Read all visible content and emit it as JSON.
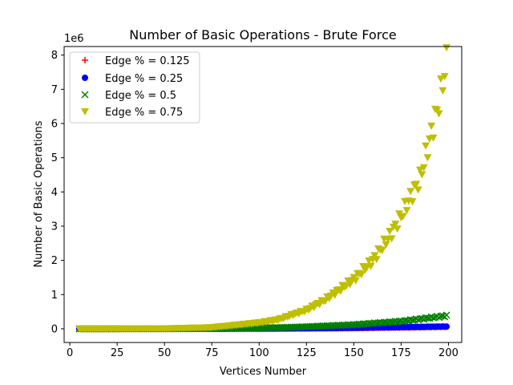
{
  "chart_data": {
    "type": "scatter",
    "title": "Number of Basic Operations - Brute Force",
    "xlabel": "Vertices Number",
    "ylabel": "Number of Basic Operations",
    "offset_text": "1e6",
    "xlim": [
      -3,
      207
    ],
    "ylim": [
      -0.4,
      8.25
    ],
    "y_scale_note": "values in units of 1e6",
    "x_ticks": [
      0,
      25,
      50,
      75,
      100,
      125,
      150,
      175,
      200
    ],
    "x_tick_labels": [
      "0",
      "25",
      "50",
      "75",
      "100",
      "125",
      "150",
      "175",
      "200"
    ],
    "y_ticks": [
      0,
      1,
      2,
      3,
      4,
      5,
      6,
      7,
      8
    ],
    "y_tick_labels": [
      "0",
      "1",
      "2",
      "3",
      "4",
      "5",
      "6",
      "7",
      "8"
    ],
    "grid": false,
    "legend_position": "top-left",
    "series": [
      {
        "name": "Edge % = 0.125",
        "color": "#ff0000",
        "marker": "plus",
        "x_range": [
          5,
          199
        ],
        "samples": [
          [
            5,
            0
          ],
          [
            50,
            0.0003
          ],
          [
            100,
            0.0039
          ],
          [
            125,
            0.0095
          ],
          [
            150,
            0.0197
          ],
          [
            175,
            0.0365
          ],
          [
            199,
            0.0608
          ]
        ]
      },
      {
        "name": "Edge % = 0.25",
        "color": "#0000ff",
        "marker": "circle",
        "x_range": [
          5,
          199
        ],
        "samples": [
          [
            5,
            0
          ],
          [
            50,
            0.0006
          ],
          [
            100,
            0.0072
          ],
          [
            125,
            0.016
          ],
          [
            150,
            0.029
          ],
          [
            175,
            0.05
          ],
          [
            199,
            0.065
          ]
        ]
      },
      {
        "name": "Edge % = 0.5",
        "color": "#008000",
        "marker": "x",
        "x_range": [
          5,
          199
        ],
        "samples": [
          [
            5,
            0
          ],
          [
            50,
            0.0015
          ],
          [
            100,
            0.024
          ],
          [
            110,
            0.035
          ],
          [
            125,
            0.06
          ],
          [
            150,
            0.12
          ],
          [
            175,
            0.22
          ],
          [
            199,
            0.38
          ]
        ]
      },
      {
        "name": "Edge % = 0.75",
        "color": "#bfbf00",
        "marker": "triangle-down",
        "x_range": [
          5,
          199
        ],
        "samples": [
          [
            5,
            0
          ],
          [
            50,
            0.006
          ],
          [
            75,
            0.04
          ],
          [
            100,
            0.18
          ],
          [
            110,
            0.27
          ],
          [
            125,
            0.55
          ],
          [
            135,
            0.85
          ],
          [
            150,
            1.45
          ],
          [
            160,
            2.0
          ],
          [
            170,
            2.8
          ],
          [
            175,
            3.3
          ],
          [
            180,
            3.85
          ],
          [
            185,
            4.4
          ],
          [
            190,
            5.5
          ],
          [
            195,
            6.6
          ],
          [
            199,
            7.8
          ]
        ]
      }
    ]
  }
}
